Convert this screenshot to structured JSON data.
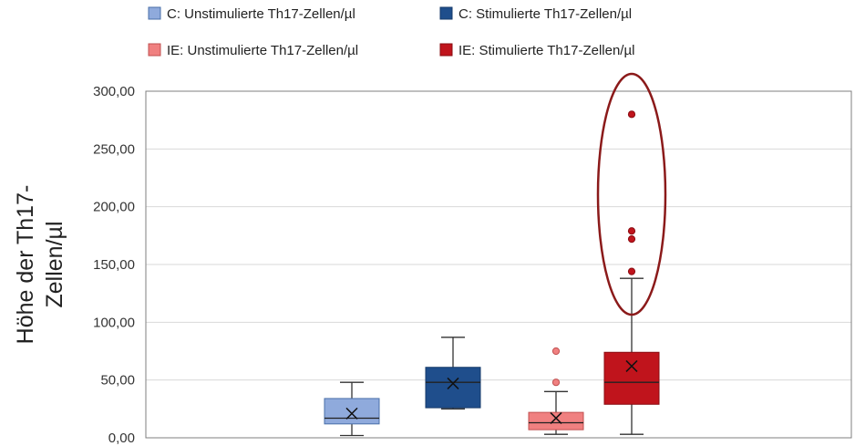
{
  "chart_data": {
    "type": "box",
    "ylabel": [
      "Höhe der Th17-",
      "Zellen/µl"
    ],
    "ylim": [
      0,
      300
    ],
    "yticks": [
      0,
      50,
      100,
      150,
      200,
      250,
      300
    ],
    "ytick_labels": [
      "0,00",
      "50,00",
      "100,00",
      "150,00",
      "200,00",
      "250,00",
      "300,00"
    ],
    "grid": true,
    "legend_position": "top",
    "series": [
      {
        "name": "C: Unstimulierte Th17-Zellen/µl",
        "color": "#8faadc",
        "stroke": "#4a6fa8",
        "whisker_low": 2,
        "q1": 12,
        "median": 17,
        "q3": 34,
        "whisker_high": 48,
        "mean": 21,
        "outliers": []
      },
      {
        "name": "C: Stimulierte Th17-Zellen/µl",
        "color": "#1f4e8c",
        "stroke": "#163a6a",
        "whisker_low": 25,
        "q1": 26,
        "median": 48,
        "q3": 61,
        "whisker_high": 87,
        "mean": 47,
        "outliers": []
      },
      {
        "name": "IE: Unstimulierte Th17-Zellen/µl",
        "color": "#f08080",
        "stroke": "#c05050",
        "whisker_low": 3,
        "q1": 7,
        "median": 13,
        "q3": 22,
        "whisker_high": 40,
        "mean": 17,
        "outliers": [
          48,
          75
        ]
      },
      {
        "name": "IE: Stimulierte Th17-Zellen/µl",
        "color": "#c0141c",
        "stroke": "#8a0c12",
        "whisker_low": 3,
        "q1": 29,
        "median": 48,
        "q3": 74,
        "whisker_high": 138,
        "mean": 62,
        "outliers": [
          144,
          172,
          179,
          280
        ]
      }
    ]
  }
}
